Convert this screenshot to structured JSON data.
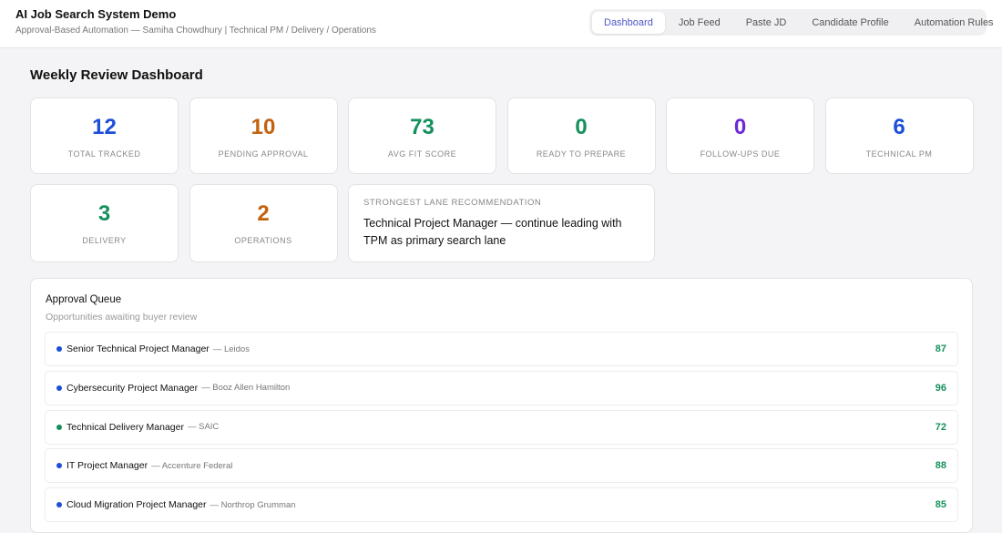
{
  "header": {
    "title": "AI Job Search System Demo",
    "subtitle": "Approval-Based Automation — Samiha Chowdhury | Technical PM / Delivery / Operations"
  },
  "tabs": [
    "Dashboard",
    "Job Feed",
    "Paste JD",
    "Candidate Profile",
    "Automation Rules"
  ],
  "dashboard": {
    "title": "Weekly Review Dashboard",
    "stats": [
      {
        "value": 12,
        "label": "TOTAL TRACKED"
      },
      {
        "value": 10,
        "label": "PENDING APPROVAL"
      },
      {
        "value": 73,
        "label": "AVG FIT SCORE"
      },
      {
        "value": 0,
        "label": "READY TO PREPARE"
      },
      {
        "value": 0,
        "label": "FOLLOW-UPS DUE"
      },
      {
        "value": 6,
        "label": "TECHNICAL PM"
      },
      {
        "value": 3,
        "label": "DELIVERY"
      },
      {
        "value": 2,
        "label": "OPERATIONS"
      }
    ],
    "recommendation": {
      "label": "STRONGEST LANE RECOMMENDATION",
      "text": "Technical Project Manager — continue leading with TPM as primary search lane"
    }
  },
  "queue": {
    "title": "Approval Queue",
    "subtitle": "Opportunities awaiting buyer review",
    "rows": [
      {
        "role": "Senior Technical Project Manager",
        "company": "— Leidos",
        "score": 87
      },
      {
        "role": "Cybersecurity Project Manager",
        "company": "— Booz Allen Hamilton",
        "score": 96
      },
      {
        "role": "Technical Delivery Manager",
        "company": "— SAIC",
        "score": 72
      },
      {
        "role": "IT Project Manager",
        "company": "— Accenture Federal",
        "score": 88
      },
      {
        "role": "Cloud Migration Project Manager",
        "company": "— Northrop Grumman",
        "score": 85
      }
    ]
  }
}
